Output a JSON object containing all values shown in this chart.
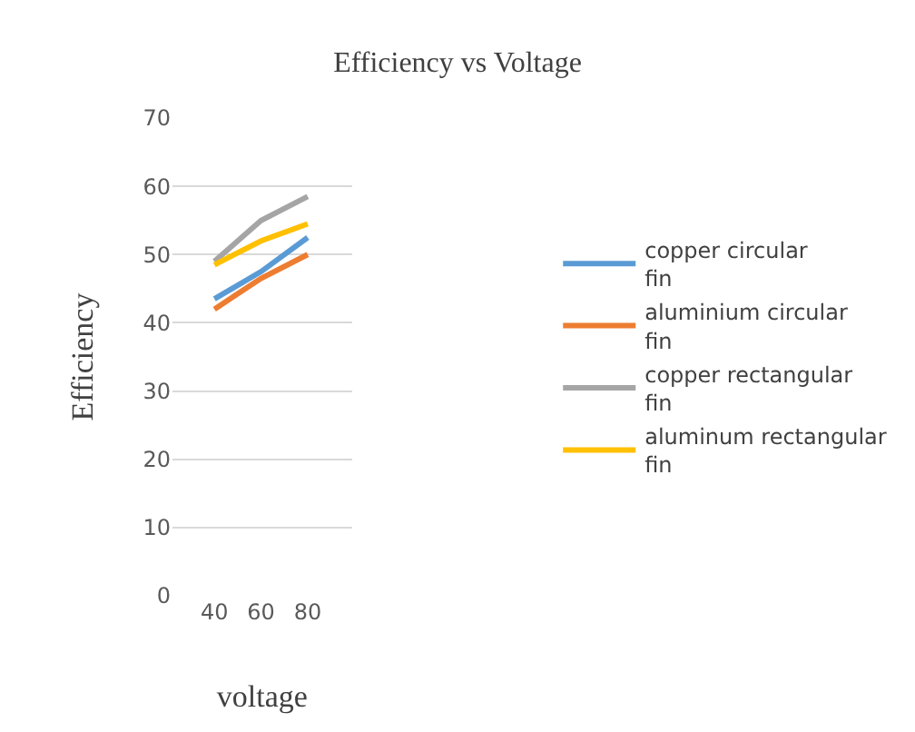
{
  "chart_data": {
    "type": "line",
    "title": "Efficiency vs Voltage",
    "xlabel": "voltage",
    "ylabel": "Efficiency",
    "categories": [
      "40",
      "60",
      "80"
    ],
    "series": [
      {
        "name": "copper circular fin",
        "color": "#5b9bd5",
        "values": [
          43.5,
          47.5,
          52.5
        ]
      },
      {
        "name": "aluminium circular fin",
        "color": "#ed7d31",
        "values": [
          42,
          46.5,
          50
        ]
      },
      {
        "name": "copper rectangular fin",
        "color": "#a5a5a5",
        "values": [
          49,
          55,
          58.5
        ]
      },
      {
        "name": "aluminum rectangular fin",
        "color": "#ffc000",
        "values": [
          48.5,
          52,
          54.5
        ]
      }
    ],
    "ylim": [
      0,
      70
    ],
    "yticks": [
      0,
      10,
      20,
      30,
      40,
      50,
      60,
      70
    ],
    "grid": "y",
    "legend": "right",
    "marker": "none",
    "line_style": "solid"
  }
}
